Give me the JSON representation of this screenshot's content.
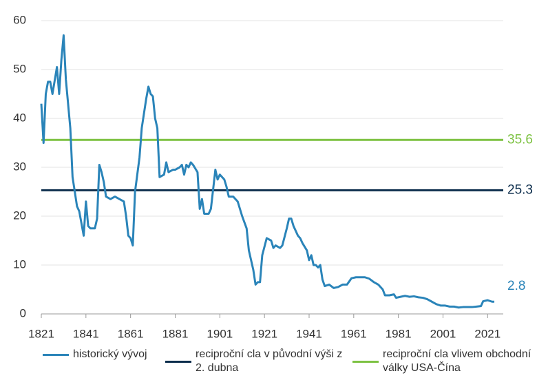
{
  "chart_data": {
    "type": "line",
    "xlim": [
      1821,
      2028
    ],
    "ylim": [
      0,
      60
    ],
    "xticks": [
      1821,
      1841,
      1861,
      1881,
      1901,
      1921,
      1941,
      1961,
      1981,
      2001,
      2021
    ],
    "yticks": [
      0,
      10,
      20,
      30,
      40,
      50,
      60
    ],
    "grid": true,
    "legend": "bottom",
    "series": [
      {
        "name": "historický vývoj",
        "color": "#2a84b9",
        "label_value": 2.8,
        "x": [
          1821,
          1822,
          1823,
          1824,
          1825,
          1826,
          1828,
          1829,
          1830,
          1831,
          1832,
          1834,
          1835,
          1837,
          1838,
          1840,
          1841,
          1842,
          1843,
          1845,
          1846,
          1847,
          1848,
          1849,
          1850,
          1852,
          1854,
          1856,
          1858,
          1859,
          1860,
          1861,
          1862,
          1863,
          1865,
          1866,
          1868,
          1869,
          1870,
          1871,
          1872,
          1873,
          1874,
          1876,
          1877,
          1878,
          1880,
          1881,
          1883,
          1884,
          1885,
          1886,
          1887,
          1888,
          1889,
          1891,
          1892,
          1893,
          1894,
          1896,
          1897,
          1899,
          1900,
          1901,
          1903,
          1904,
          1905,
          1907,
          1909,
          1911,
          1913,
          1914,
          1916,
          1917,
          1918,
          1919,
          1920,
          1922,
          1924,
          1925,
          1926,
          1928,
          1929,
          1931,
          1932,
          1933,
          1934,
          1936,
          1937,
          1938,
          1940,
          1941,
          1942,
          1943,
          1944,
          1945,
          1946,
          1947,
          1948,
          1950,
          1952,
          1954,
          1956,
          1958,
          1960,
          1962,
          1964,
          1966,
          1968,
          1970,
          1972,
          1974,
          1975,
          1977,
          1979,
          1980,
          1982,
          1984,
          1986,
          1988,
          1990,
          1992,
          1994,
          1996,
          1998,
          2000,
          2002,
          2004,
          2006,
          2008,
          2010,
          2012,
          2014,
          2016,
          2018,
          2019,
          2021,
          2023,
          2024
        ],
        "values": [
          43,
          35,
          45,
          47.5,
          47.5,
          45,
          50.5,
          45,
          52,
          57,
          48,
          38,
          28,
          22,
          21,
          16,
          23,
          18,
          17.5,
          17.5,
          19.5,
          30.5,
          29,
          27,
          24,
          23.5,
          24,
          23.5,
          23,
          20,
          16,
          15.5,
          14,
          25,
          32,
          38,
          44,
          46.5,
          45,
          44.5,
          40,
          38,
          28,
          28.5,
          31,
          29,
          29.5,
          29.5,
          30,
          30.5,
          28.5,
          30.5,
          30,
          31,
          30.5,
          29,
          21.5,
          23.5,
          20.5,
          20.5,
          21.5,
          29.5,
          27.5,
          28.5,
          27.5,
          26,
          24,
          24,
          23,
          20,
          17.5,
          13,
          9,
          6,
          6.5,
          6.5,
          12,
          15.5,
          15,
          13.5,
          14,
          13.5,
          14,
          17.5,
          19.5,
          19.5,
          18,
          16,
          15.5,
          14.5,
          13,
          11,
          12,
          10,
          10,
          9.5,
          10,
          7,
          5.7,
          6,
          5.3,
          5.5,
          6,
          6,
          7.3,
          7.5,
          7.5,
          7.5,
          7.2,
          6.5,
          6,
          5,
          3.8,
          3.8,
          4,
          3.3,
          3.5,
          3.7,
          3.5,
          3.6,
          3.4,
          3.3,
          3,
          2.5,
          2,
          1.7,
          1.7,
          1.5,
          1.5,
          1.3,
          1.4,
          1.4,
          1.4,
          1.5,
          1.6,
          2.6,
          2.8,
          2.5,
          2.5
        ]
      },
      {
        "name": "reciproční cla v původní výši z 2. dubna",
        "color": "#0c2d4c",
        "label_value": 25.3,
        "x": [
          1821,
          2028
        ],
        "values": [
          25.3,
          25.3
        ]
      },
      {
        "name": "reciproční cla vlivem obchodní války USA-Čína",
        "color": "#7dc242",
        "label_value": 35.6,
        "x": [
          1821,
          2028
        ],
        "values": [
          35.6,
          35.6
        ]
      }
    ]
  }
}
